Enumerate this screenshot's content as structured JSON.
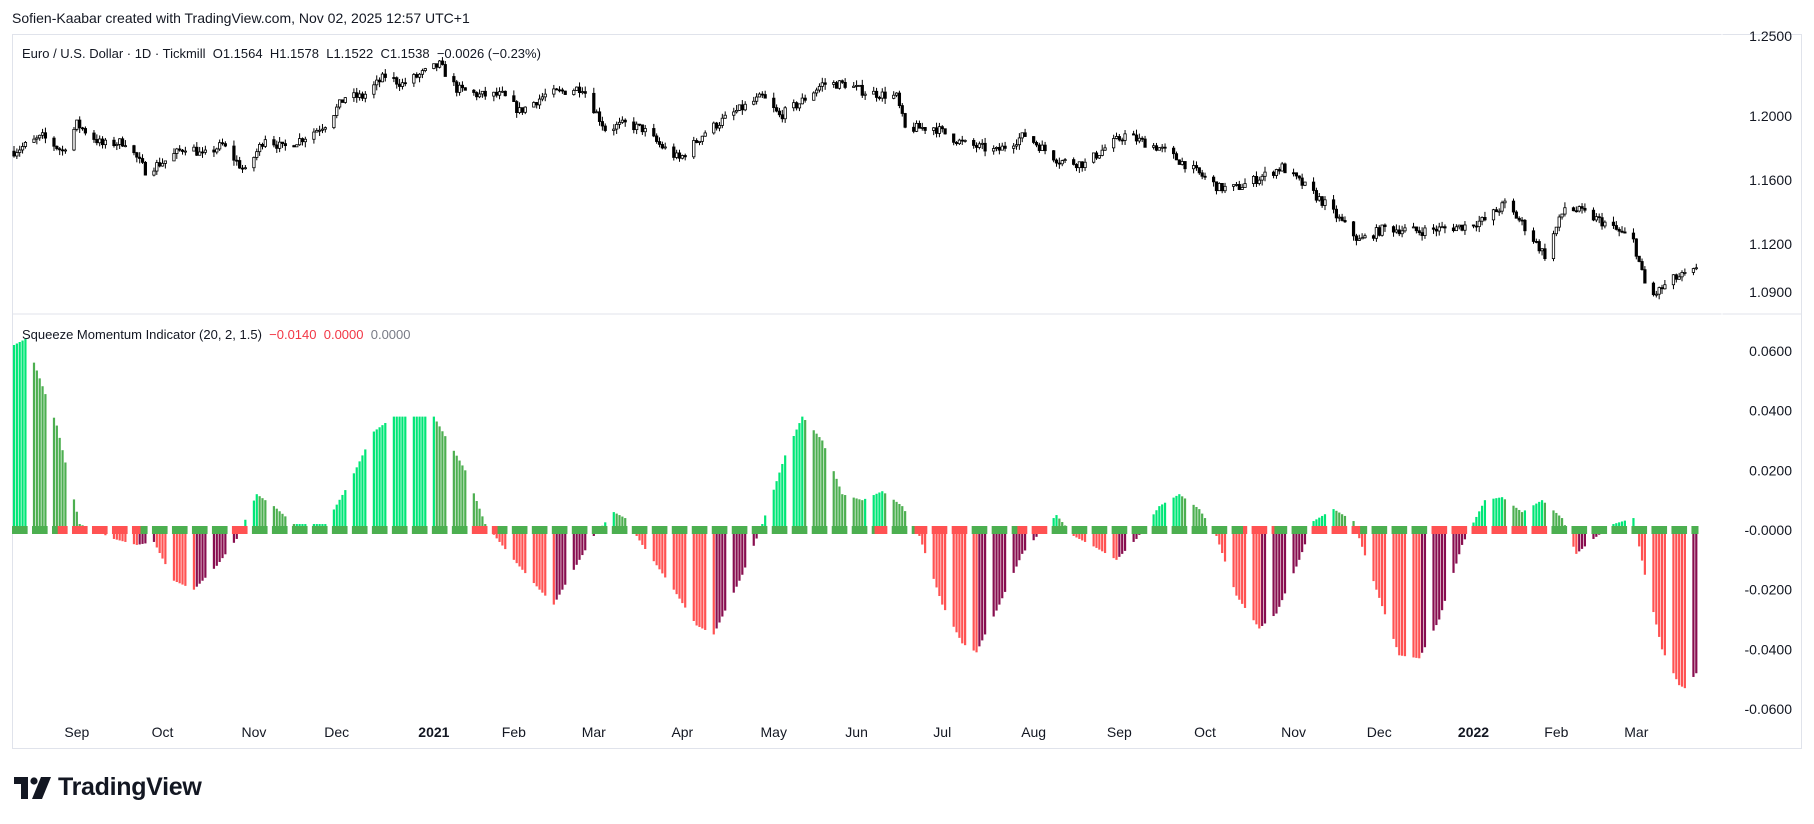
{
  "header": {
    "credit": "Sofien-Kaabar created with TradingView.com, Nov 02, 2025 12:57 UTC+1"
  },
  "price_legend": {
    "title": "Euro / U.S. Dollar · 1D · Tickmill",
    "open": "O1.1564",
    "high": "H1.1578",
    "low": "L1.1522",
    "close": "C1.1538",
    "change": "−0.0026 (−0.23%)"
  },
  "indicator_legend": {
    "title": "Squeeze Momentum Indicator (20, 2, 1.5)",
    "value1": "−0.0140",
    "value2": "0.0000",
    "value3": "0.0000"
  },
  "brand": {
    "name": "TradingView"
  },
  "colors": {
    "bull_strong": "#00e676",
    "bull_weak": "#4caf50",
    "bear_strong": "#ff5252",
    "bear_weak": "#880e4f",
    "squeeze_on": "#ff5252",
    "squeeze_off": "#4caf50",
    "candle": "#000000"
  },
  "chart_data": [
    {
      "type": "candlestick",
      "series": "EUR/USD daily",
      "y_ticks": [
        "1.2500",
        "1.2000",
        "1.1600",
        "1.1200",
        "1.0900"
      ],
      "ylim": [
        1.085,
        1.25
      ],
      "x_range": [
        "2020-08-10",
        "2022-03-31"
      ],
      "path": [
        [
          "2020-08-10",
          1.178
        ],
        [
          "2020-08-20",
          1.187
        ],
        [
          "2020-08-27",
          1.178
        ],
        [
          "2020-09-01",
          1.195
        ],
        [
          "2020-09-10",
          1.182
        ],
        [
          "2020-09-18",
          1.184
        ],
        [
          "2020-09-25",
          1.166
        ],
        [
          "2020-10-02",
          1.172
        ],
        [
          "2020-10-10",
          1.182
        ],
        [
          "2020-10-15",
          1.175
        ],
        [
          "2020-10-22",
          1.182
        ],
        [
          "2020-10-30",
          1.165
        ],
        [
          "2020-11-06",
          1.187
        ],
        [
          "2020-11-12",
          1.18
        ],
        [
          "2020-11-20",
          1.187
        ],
        [
          "2020-11-27",
          1.195
        ],
        [
          "2020-12-04",
          1.212
        ],
        [
          "2020-12-10",
          1.212
        ],
        [
          "2020-12-18",
          1.225
        ],
        [
          "2020-12-24",
          1.22
        ],
        [
          "2021-01-06",
          1.232
        ],
        [
          "2021-01-12",
          1.217
        ],
        [
          "2021-01-20",
          1.213
        ],
        [
          "2021-01-28",
          1.213
        ],
        [
          "2021-02-03",
          1.203
        ],
        [
          "2021-02-12",
          1.213
        ],
        [
          "2021-02-25",
          1.218
        ],
        [
          "2021-03-05",
          1.192
        ],
        [
          "2021-03-12",
          1.195
        ],
        [
          "2021-03-18",
          1.192
        ],
        [
          "2021-03-24",
          1.182
        ],
        [
          "2021-03-31",
          1.173
        ],
        [
          "2021-04-09",
          1.19
        ],
        [
          "2021-04-20",
          1.203
        ],
        [
          "2021-04-29",
          1.212
        ],
        [
          "2021-05-05",
          1.2
        ],
        [
          "2021-05-12",
          1.208
        ],
        [
          "2021-05-20",
          1.22
        ],
        [
          "2021-05-28",
          1.22
        ],
        [
          "2021-06-04",
          1.215
        ],
        [
          "2021-06-15",
          1.212
        ],
        [
          "2021-06-18",
          1.192
        ],
        [
          "2021-06-28",
          1.193
        ],
        [
          "2021-07-08",
          1.183
        ],
        [
          "2021-07-20",
          1.178
        ],
        [
          "2021-07-30",
          1.188
        ],
        [
          "2021-08-11",
          1.172
        ],
        [
          "2021-08-20",
          1.17
        ],
        [
          "2021-08-27",
          1.18
        ],
        [
          "2021-09-03",
          1.188
        ],
        [
          "2021-09-15",
          1.18
        ],
        [
          "2021-09-24",
          1.17
        ],
        [
          "2021-10-06",
          1.155
        ],
        [
          "2021-10-12",
          1.155
        ],
        [
          "2021-10-22",
          1.163
        ],
        [
          "2021-10-28",
          1.168
        ],
        [
          "2021-11-05",
          1.156
        ],
        [
          "2021-11-12",
          1.145
        ],
        [
          "2021-11-24",
          1.122
        ],
        [
          "2021-12-03",
          1.13
        ],
        [
          "2021-12-15",
          1.128
        ],
        [
          "2021-12-30",
          1.131
        ],
        [
          "2022-01-07",
          1.135
        ],
        [
          "2022-01-14",
          1.145
        ],
        [
          "2022-01-20",
          1.133
        ],
        [
          "2022-01-28",
          1.113
        ],
        [
          "2022-02-04",
          1.143
        ],
        [
          "2022-02-10",
          1.14
        ],
        [
          "2022-02-18",
          1.133
        ],
        [
          "2022-02-28",
          1.122
        ],
        [
          "2022-03-04",
          1.095
        ],
        [
          "2022-03-07",
          1.088
        ],
        [
          "2022-03-14",
          1.098
        ],
        [
          "2022-03-22",
          1.103
        ],
        [
          "2022-03-31",
          1.108
        ]
      ]
    },
    {
      "type": "histogram",
      "series": "Squeeze Momentum",
      "y_ticks": [
        "0.0600",
        "0.0400",
        "0.0200",
        "-0.0000",
        "-0.0200",
        "-0.0400",
        "-0.0600"
      ],
      "ylim": [
        -0.062,
        0.062
      ],
      "x_range": [
        "2020-08-10",
        "2022-03-31"
      ],
      "x_labels": [
        {
          "label": "Sep",
          "date": "2020-09-01"
        },
        {
          "label": "Oct",
          "date": "2020-10-01"
        },
        {
          "label": "Nov",
          "date": "2020-11-02"
        },
        {
          "label": "Dec",
          "date": "2020-12-01"
        },
        {
          "label": "2021",
          "date": "2021-01-04",
          "bold": true
        },
        {
          "label": "Feb",
          "date": "2021-02-01"
        },
        {
          "label": "Mar",
          "date": "2021-03-01"
        },
        {
          "label": "Apr",
          "date": "2021-04-01"
        },
        {
          "label": "May",
          "date": "2021-05-03"
        },
        {
          "label": "Jun",
          "date": "2021-06-01"
        },
        {
          "label": "Jul",
          "date": "2021-07-01"
        },
        {
          "label": "Aug",
          "date": "2021-08-02"
        },
        {
          "label": "Sep",
          "date": "2021-09-01"
        },
        {
          "label": "Oct",
          "date": "2021-10-01"
        },
        {
          "label": "Nov",
          "date": "2021-11-01"
        },
        {
          "label": "Dec",
          "date": "2021-12-01"
        },
        {
          "label": "2022",
          "date": "2022-01-03",
          "bold": true
        },
        {
          "label": "Feb",
          "date": "2022-02-01"
        },
        {
          "label": "Mar",
          "date": "2022-03-01"
        }
      ],
      "momentum_path": [
        [
          "2020-08-10",
          0.062
        ],
        [
          "2020-08-14",
          0.064
        ],
        [
          "2020-08-25",
          0.035
        ],
        [
          "2020-09-02",
          0.002
        ],
        [
          "2020-09-14",
          -0.003
        ],
        [
          "2020-09-22",
          -0.005
        ],
        [
          "2020-09-28",
          -0.004
        ],
        [
          "2020-10-05",
          -0.017
        ],
        [
          "2020-10-12",
          -0.02
        ],
        [
          "2020-10-20",
          -0.012
        ],
        [
          "2020-10-27",
          -0.003
        ],
        [
          "2020-11-03",
          0.012
        ],
        [
          "2020-11-09",
          0.008
        ],
        [
          "2020-11-16",
          0.002
        ],
        [
          "2020-11-27",
          0.002
        ],
        [
          "2020-12-05",
          0.015
        ],
        [
          "2020-12-14",
          0.033
        ],
        [
          "2020-12-21",
          0.038
        ],
        [
          "2021-01-04",
          0.038
        ],
        [
          "2021-01-15",
          0.02
        ],
        [
          "2021-01-22",
          0.002
        ],
        [
          "2021-02-01",
          -0.01
        ],
        [
          "2021-02-10",
          -0.02
        ],
        [
          "2021-02-15",
          -0.025
        ],
        [
          "2021-02-24",
          -0.01
        ],
        [
          "2021-03-01",
          -0.002
        ],
        [
          "2021-03-08",
          0.006
        ],
        [
          "2021-03-12",
          0.004
        ],
        [
          "2021-03-18",
          -0.005
        ],
        [
          "2021-03-29",
          -0.02
        ],
        [
          "2021-04-06",
          -0.032
        ],
        [
          "2021-04-12",
          -0.035
        ],
        [
          "2021-04-22",
          -0.015
        ],
        [
          "2021-04-29",
          0.002
        ],
        [
          "2021-05-07",
          0.025
        ],
        [
          "2021-05-13",
          0.038
        ],
        [
          "2021-05-20",
          0.03
        ],
        [
          "2021-05-27",
          0.012
        ],
        [
          "2021-06-03",
          0.01
        ],
        [
          "2021-06-10",
          0.013
        ],
        [
          "2021-06-17",
          0.008
        ],
        [
          "2021-06-23",
          -0.002
        ],
        [
          "2021-07-01",
          -0.025
        ],
        [
          "2021-07-08",
          -0.038
        ],
        [
          "2021-07-13",
          -0.041
        ],
        [
          "2021-07-21",
          -0.025
        ],
        [
          "2021-07-29",
          -0.008
        ],
        [
          "2021-08-05",
          0.0
        ],
        [
          "2021-08-10",
          0.005
        ],
        [
          "2021-08-16",
          -0.002
        ],
        [
          "2021-08-24",
          -0.006
        ],
        [
          "2021-08-31",
          -0.01
        ],
        [
          "2021-09-07",
          -0.003
        ],
        [
          "2021-09-15",
          0.008
        ],
        [
          "2021-09-22",
          0.012
        ],
        [
          "2021-09-29",
          0.007
        ],
        [
          "2021-10-05",
          -0.002
        ],
        [
          "2021-10-12",
          -0.022
        ],
        [
          "2021-10-20",
          -0.033
        ],
        [
          "2021-10-26",
          -0.028
        ],
        [
          "2021-11-03",
          -0.01
        ],
        [
          "2021-11-08",
          0.003
        ],
        [
          "2021-11-15",
          0.007
        ],
        [
          "2021-11-22",
          0.003
        ],
        [
          "2021-11-30",
          -0.02
        ],
        [
          "2021-12-08",
          -0.042
        ],
        [
          "2021-12-15",
          -0.043
        ],
        [
          "2021-12-22",
          -0.03
        ],
        [
          "2021-12-30",
          -0.005
        ],
        [
          "2022-01-07",
          0.01
        ],
        [
          "2022-01-13",
          0.011
        ],
        [
          "2022-01-20",
          0.006
        ],
        [
          "2022-01-27",
          0.01
        ],
        [
          "2022-02-03",
          0.004
        ],
        [
          "2022-02-08",
          -0.008
        ],
        [
          "2022-02-14",
          -0.003
        ],
        [
          "2022-02-21",
          0.002
        ],
        [
          "2022-02-28",
          0.004
        ],
        [
          "2022-03-04",
          -0.015
        ],
        [
          "2022-03-10",
          -0.04
        ],
        [
          "2022-03-16",
          -0.052
        ],
        [
          "2022-03-18",
          -0.053
        ],
        [
          "2022-03-22",
          -0.048
        ]
      ],
      "squeeze_on_ranges": [
        [
          "2020-08-26",
          "2020-09-23"
        ],
        [
          "2020-10-24",
          "2020-10-31"
        ],
        [
          "2021-01-18",
          "2021-01-26"
        ],
        [
          "2021-06-08",
          "2021-06-13"
        ],
        [
          "2021-06-22",
          "2021-07-10"
        ],
        [
          "2021-07-28",
          "2021-08-08"
        ],
        [
          "2021-10-15",
          "2021-10-25"
        ],
        [
          "2021-11-08",
          "2021-11-24"
        ],
        [
          "2021-12-20",
          "2022-01-28"
        ]
      ]
    }
  ]
}
